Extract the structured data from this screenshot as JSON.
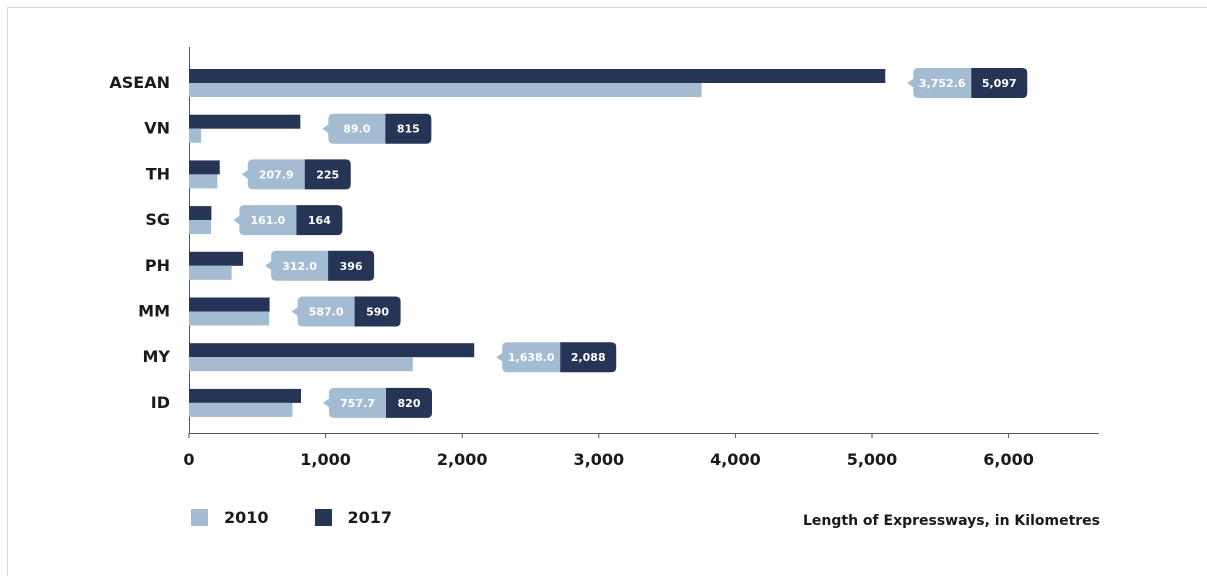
{
  "colors": {
    "series_2010": "#a4bcd2",
    "series_2017": "#263456",
    "axis": "#555555"
  },
  "chart_data": {
    "type": "bar",
    "orientation": "horizontal",
    "title": "",
    "xlabel": "Length of Expressways, in Kilometres",
    "ylabel": "",
    "xlim": [
      0,
      6800
    ],
    "xticks": [
      0,
      1000,
      2000,
      3000,
      4000,
      5000,
      6000
    ],
    "xtick_labels": [
      "0",
      "1,000",
      "2,000",
      "3,000",
      "4,000",
      "5,000",
      "6,000"
    ],
    "categories": [
      "ASEAN",
      "VN",
      "TH",
      "SG",
      "PH",
      "MM",
      "MY",
      "ID"
    ],
    "series": [
      {
        "name": "2010",
        "values": [
          3752.6,
          89.0,
          207.9,
          161.0,
          312.0,
          587.0,
          1638.0,
          757.7
        ],
        "labels": [
          "3,752.6",
          "89.0",
          "207.9",
          "161.0",
          "312.0",
          "587.0",
          "1,638.0",
          "757.7"
        ]
      },
      {
        "name": "2017",
        "values": [
          5097,
          815,
          225,
          164,
          396,
          590,
          2088,
          820
        ],
        "labels": [
          "5,097",
          "815",
          "225",
          "164",
          "396",
          "590",
          "2,088",
          "820"
        ]
      }
    ],
    "grid": false,
    "legend": "bottom-left"
  }
}
